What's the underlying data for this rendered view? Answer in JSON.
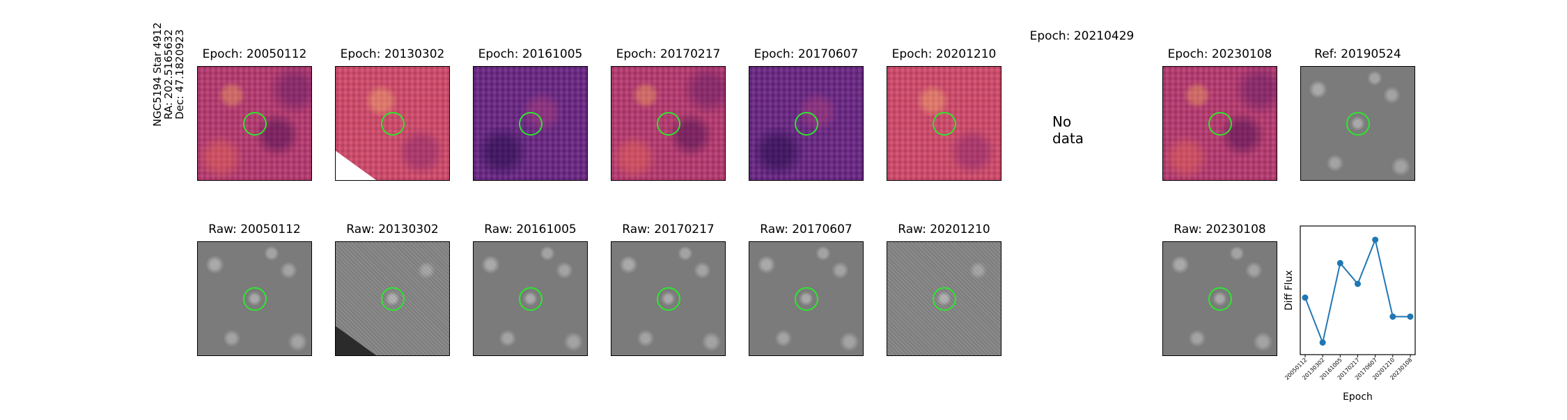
{
  "target": {
    "name": "NGC5194 Star 4912",
    "ra": "RA: 202.5165632",
    "dec": "Dec: 47.1820923"
  },
  "diff_panels": [
    {
      "title": "Epoch: 20050112",
      "style": "diff",
      "has_data": true
    },
    {
      "title": "Epoch: 20130302",
      "style": "diff bright",
      "has_data": true,
      "masked_corner": true
    },
    {
      "title": "Epoch: 20161005",
      "style": "diff dark",
      "has_data": true
    },
    {
      "title": "Epoch: 20170217",
      "style": "diff",
      "has_data": true
    },
    {
      "title": "Epoch: 20170607",
      "style": "diff dark",
      "has_data": true
    },
    {
      "title": "Epoch: 20201210",
      "style": "diff bright",
      "has_data": true
    },
    {
      "title": "Epoch: 20210429",
      "style": "none",
      "has_data": false
    },
    {
      "title": "Epoch: 20230108",
      "style": "diff",
      "has_data": true
    }
  ],
  "nodata_text": "No data",
  "ref_panel": {
    "title": "Ref: 20190524"
  },
  "raw_panels": [
    {
      "title": "Raw: 20050112",
      "style": "raw"
    },
    {
      "title": "Raw: 20130302",
      "style": "raw noisy",
      "masked_corner": true
    },
    {
      "title": "Raw: 20161005",
      "style": "raw"
    },
    {
      "title": "Raw: 20170217",
      "style": "raw"
    },
    {
      "title": "Raw: 20170607",
      "style": "raw"
    },
    {
      "title": "Raw: 20201210",
      "style": "raw noisy"
    },
    {
      "title": "Raw: 20230108",
      "style": "raw"
    }
  ],
  "colors": {
    "aperture": "#2ee62e",
    "line": "#1f77b4"
  },
  "chart_data": {
    "type": "line",
    "title": "",
    "xlabel": "Epoch",
    "ylabel": "Diff Flux",
    "categories": [
      "20050112",
      "20130302",
      "20161005",
      "20170217",
      "20170607",
      "20201210",
      "20230108"
    ],
    "values": [
      0.52,
      0.0,
      0.92,
      0.68,
      1.19,
      0.3,
      0.3
    ],
    "ylim": [
      -0.14,
      1.35
    ],
    "grid": false,
    "y_tick_labels_visible": false
  }
}
